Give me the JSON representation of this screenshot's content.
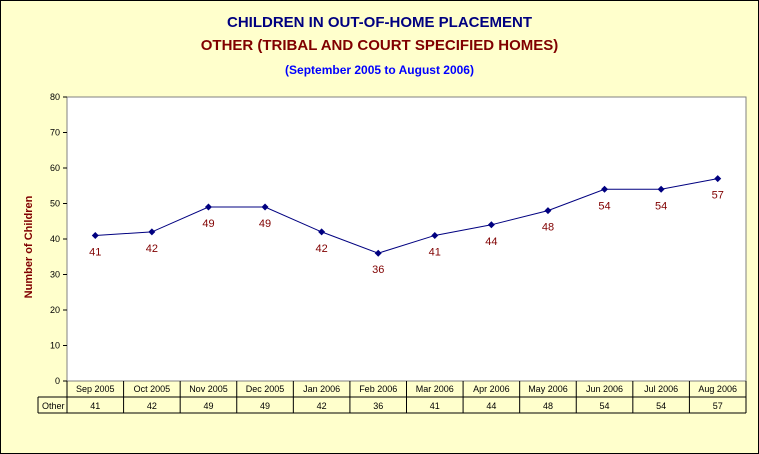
{
  "colors": {
    "background": "#ffffcc",
    "plot_area": "#ffffff",
    "title": "#000080",
    "subtitle": "#800000",
    "period": "#0000ff",
    "ylabel": "#800000",
    "series_line": "#000080",
    "data_label": "#800000"
  },
  "chart_data": {
    "type": "line",
    "title": "CHILDREN IN OUT-OF-HOME PLACEMENT",
    "subtitle": "OTHER (TRIBAL AND COURT SPECIFIED HOMES)",
    "period": "(September 2005 to August 2006)",
    "ylabel": "Number of Children",
    "xlabel": "",
    "ylim": [
      0,
      80
    ],
    "yticks": [
      0,
      10,
      20,
      30,
      40,
      50,
      60,
      70,
      80
    ],
    "grid": false,
    "categories": [
      "Sep 2005",
      "Oct 2005",
      "Nov 2005",
      "Dec 2005",
      "Jan 2006",
      "Feb 2006",
      "Mar 2006",
      "Apr 2006",
      "May 2006",
      "Jun 2006",
      "Jul 2006",
      "Aug 2006"
    ],
    "series": [
      {
        "name": "Other",
        "values": [
          41,
          42,
          49,
          49,
          42,
          36,
          41,
          44,
          48,
          54,
          54,
          57
        ]
      }
    ],
    "data_table": true
  }
}
